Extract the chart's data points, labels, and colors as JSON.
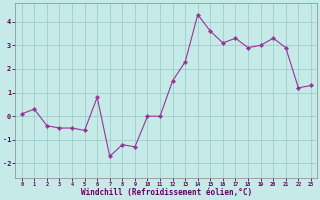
{
  "xlabel": "Windchill (Refroidissement éolien,°C)",
  "background_color": "#c5eae7",
  "grid_color": "#9ececa",
  "line_color": "#993399",
  "hours": [
    0,
    1,
    2,
    3,
    4,
    5,
    6,
    7,
    8,
    9,
    10,
    11,
    12,
    13,
    14,
    15,
    16,
    17,
    18,
    19,
    20,
    21,
    22,
    23
  ],
  "windchill": [
    0.1,
    0.3,
    -0.4,
    -0.5,
    -0.5,
    -0.6,
    0.8,
    -1.7,
    -1.2,
    -1.3,
    0.0,
    0.0,
    1.5,
    2.3,
    4.3,
    3.6,
    3.1,
    3.3,
    2.9,
    3.0,
    3.3,
    2.9,
    1.2,
    1.3
  ],
  "xlim": [
    -0.5,
    23.5
  ],
  "ylim": [
    -2.6,
    4.8
  ],
  "xticks": [
    0,
    1,
    2,
    3,
    4,
    5,
    6,
    7,
    8,
    9,
    10,
    11,
    12,
    13,
    14,
    15,
    16,
    17,
    18,
    19,
    20,
    21,
    22,
    23
  ],
  "yticks": [
    -2,
    -1,
    0,
    1,
    2,
    3,
    4
  ],
  "xtick_fontsize": 3.8,
  "ytick_fontsize": 5.0,
  "xlabel_fontsize": 5.5
}
